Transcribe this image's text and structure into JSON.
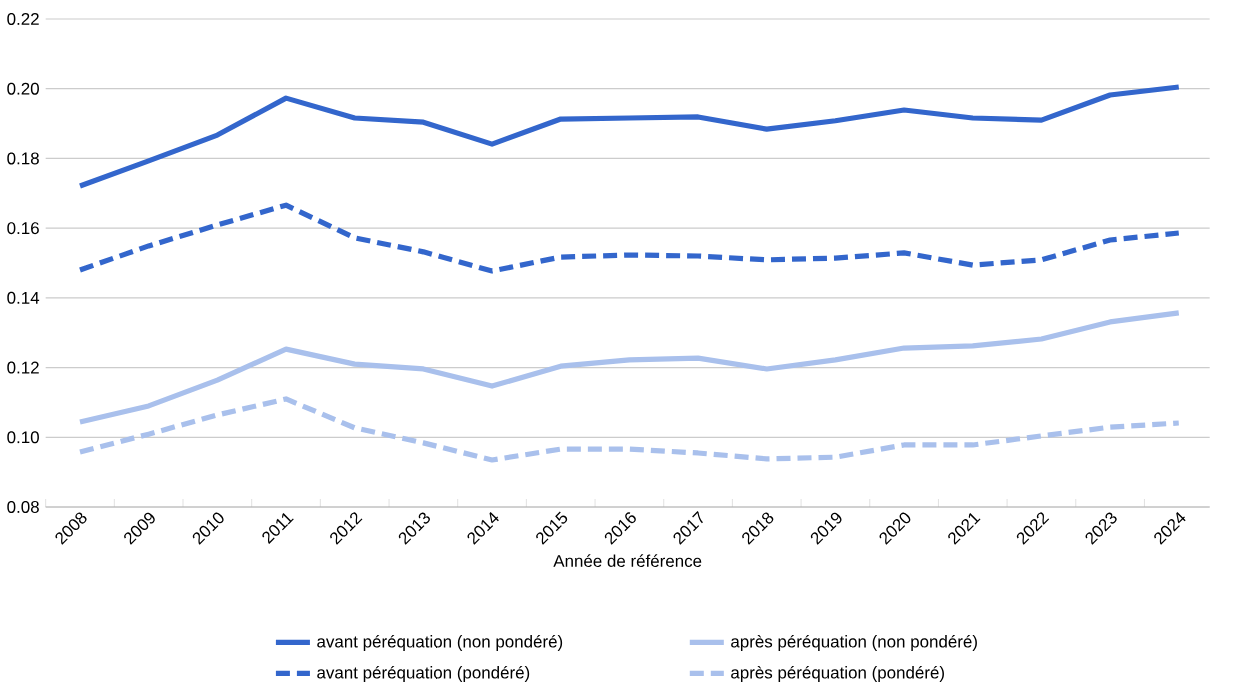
{
  "chart_data": {
    "type": "line",
    "xlabel": "Année de référence",
    "categories": [
      "2008",
      "2009",
      "2010",
      "2011",
      "2012",
      "2013",
      "2014",
      "2015",
      "2016",
      "2017",
      "2018",
      "2019",
      "2020",
      "2021",
      "2022",
      "2023",
      "2024"
    ],
    "series": [
      {
        "name": "avant péréquation (non pondéré)",
        "color": "#3366cc",
        "line_style": "solid",
        "values": [
          0.1721,
          0.1793,
          0.1867,
          0.1973,
          0.1916,
          0.1904,
          0.1841,
          0.1913,
          0.1916,
          0.1919,
          0.1884,
          0.1908,
          0.1939,
          0.1916,
          0.191,
          0.1982,
          0.2005
        ]
      },
      {
        "name": "après péréquation (non pondéré)",
        "color": "#a9c0ec",
        "line_style": "solid",
        "values": [
          0.1044,
          0.109,
          0.1164,
          0.1253,
          0.121,
          0.1196,
          0.1147,
          0.1204,
          0.1222,
          0.1227,
          0.1196,
          0.1222,
          0.1256,
          0.1262,
          0.1282,
          0.1331,
          0.1357
        ]
      },
      {
        "name": "avant péréquation (pondéré)",
        "color": "#3366cc",
        "line_style": "dashed",
        "values": [
          0.148,
          0.1549,
          0.1609,
          0.1666,
          0.1572,
          0.1532,
          0.1477,
          0.1517,
          0.1523,
          0.152,
          0.1509,
          0.1514,
          0.1529,
          0.1494,
          0.1509,
          0.1566,
          0.1586
        ]
      },
      {
        "name": "après péréquation (pondéré)",
        "color": "#a9c0ec",
        "line_style": "dashed",
        "values": [
          0.0958,
          0.1009,
          0.1064,
          0.111,
          0.1027,
          0.0984,
          0.0935,
          0.0966,
          0.0966,
          0.0955,
          0.0938,
          0.0943,
          0.0978,
          0.0978,
          0.1004,
          0.1029,
          0.1041
        ]
      }
    ],
    "ylim": [
      0.08,
      0.22
    ],
    "yticks": [
      {
        "value": 0.08,
        "label": "0.08"
      },
      {
        "value": 0.1,
        "label": "0.10"
      },
      {
        "value": 0.12,
        "label": "0.12"
      },
      {
        "value": 0.14,
        "label": "0.14"
      },
      {
        "value": 0.16,
        "label": "0.16"
      },
      {
        "value": 0.18,
        "label": "0.18"
      },
      {
        "value": 0.2,
        "label": "0.20"
      },
      {
        "value": 0.22,
        "label": "0.22"
      }
    ],
    "grid": "y",
    "legend": "bottom",
    "marker": "none"
  }
}
